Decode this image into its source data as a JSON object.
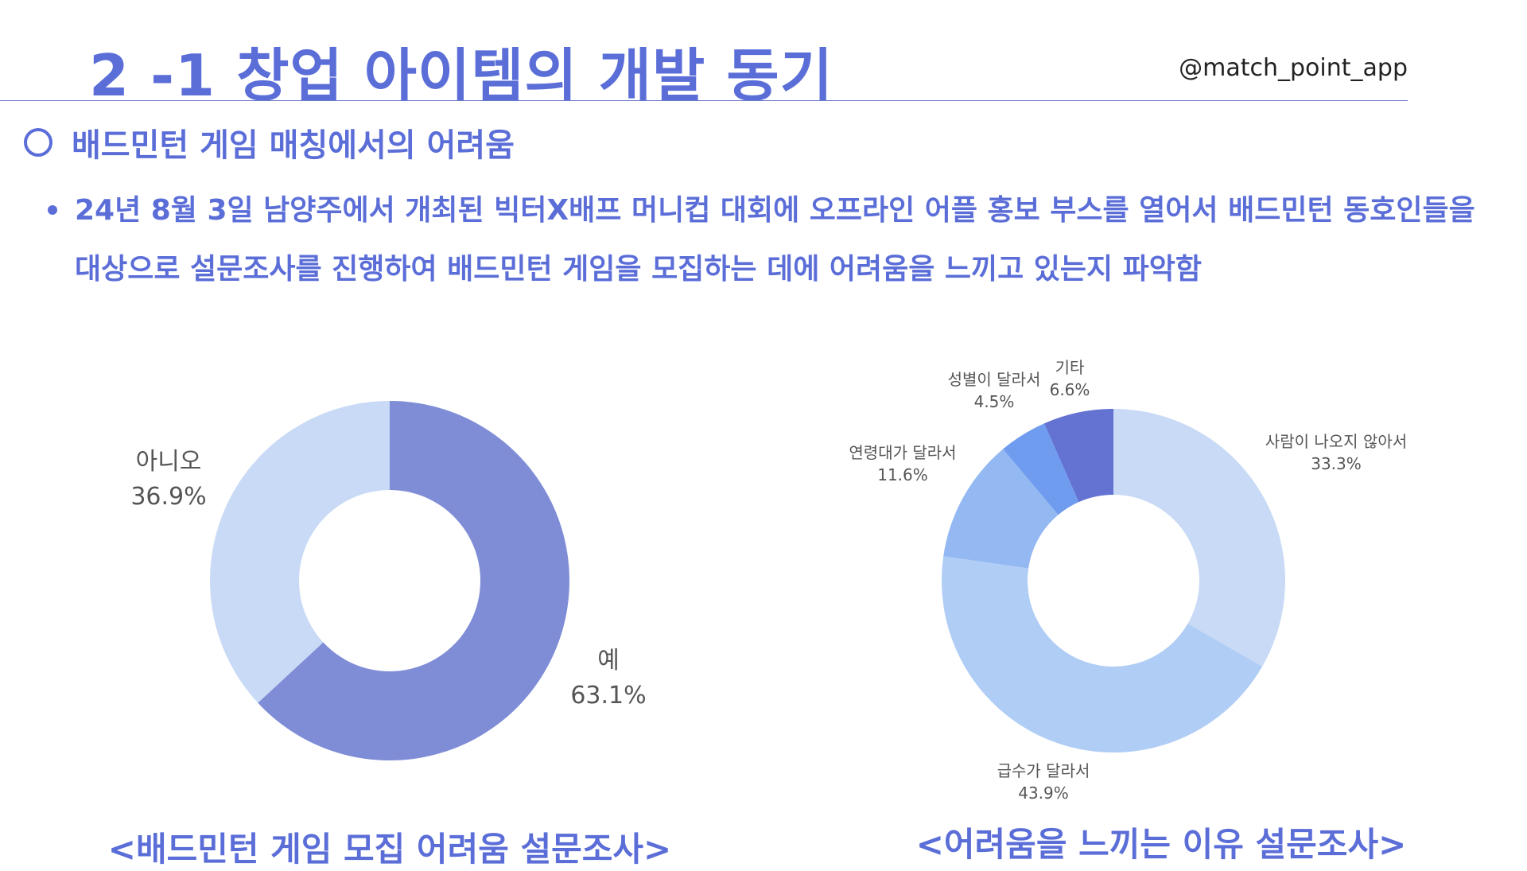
{
  "header": {
    "title": "2 -1 창업 아이템의 개발 동기",
    "handle": "@match_point_app"
  },
  "section": {
    "heading": "배드민턴 게임 매칭에서의 어려움",
    "bullet_lines": [
      "24년 8월 3일 남양주에서 개최된 빅터X배프 머니컵 대회에 오프라인 어플 홍보 부스를 열어서 배드민턴 동호인들을",
      "대상으로 설문조사를 진행하여 배드민턴 게임을 모집하는 데에 어려움을 느끼고 있는지 파악함"
    ]
  },
  "chart_data": [
    {
      "type": "pie",
      "variant": "donut",
      "title": "<배드민턴 게임 모집 어려움 설문조사>",
      "categories": [
        "예",
        "아니오"
      ],
      "values": [
        63.1,
        36.9
      ],
      "labels": [
        "63.1%",
        "36.9%"
      ],
      "colors": [
        "#7f8dd6",
        "#c8daf5"
      ],
      "legend": "none"
    },
    {
      "type": "pie",
      "variant": "donut",
      "title": "<어려움을 느끼는 이유 설문조사>",
      "categories": [
        "사람이 나오지 않아서",
        "급수가 달라서",
        "연령대가 달라서",
        "성별이 달라서",
        "기타"
      ],
      "values": [
        33.3,
        43.9,
        11.6,
        4.5,
        6.6
      ],
      "labels": [
        "33.3%",
        "43.9%",
        "11.6%",
        "4.5%",
        "6.6%"
      ],
      "colors": [
        "#c8daf5",
        "#b0cdf5",
        "#93b8f2",
        "#6f9cee",
        "#6473d2"
      ],
      "legend": "none"
    }
  ]
}
